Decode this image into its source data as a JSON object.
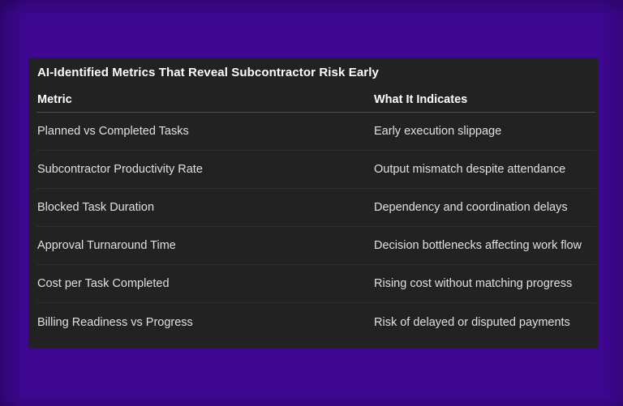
{
  "chart_data": {
    "type": "table",
    "title": "AI-Identified Metrics That Reveal Subcontractor Risk Early",
    "columns": [
      "Metric",
      "What It Indicates"
    ],
    "rows": [
      [
        "Planned vs Completed Tasks",
        "Early execution slippage"
      ],
      [
        "Subcontractor Productivity Rate",
        "Output mismatch despite attendance"
      ],
      [
        "Blocked Task Duration",
        "Dependency and coordination delays"
      ],
      [
        "Approval Turnaround Time",
        "Decision bottlenecks affecting work flow"
      ],
      [
        "Cost per Task Completed",
        "Rising cost without matching progress"
      ],
      [
        "Billing Readiness vs Progress",
        "Risk of delayed or disputed payments"
      ]
    ],
    "layout": {
      "legend": "none",
      "grid": "horizontal row dividers only"
    }
  },
  "colors": {
    "background": "#3E0791",
    "panel": "#222222",
    "header_divider": "#4e4e4e",
    "row_divider": "#2e2e2e",
    "title_text": "#ffffff",
    "cell_text": "#e0e0e0"
  }
}
